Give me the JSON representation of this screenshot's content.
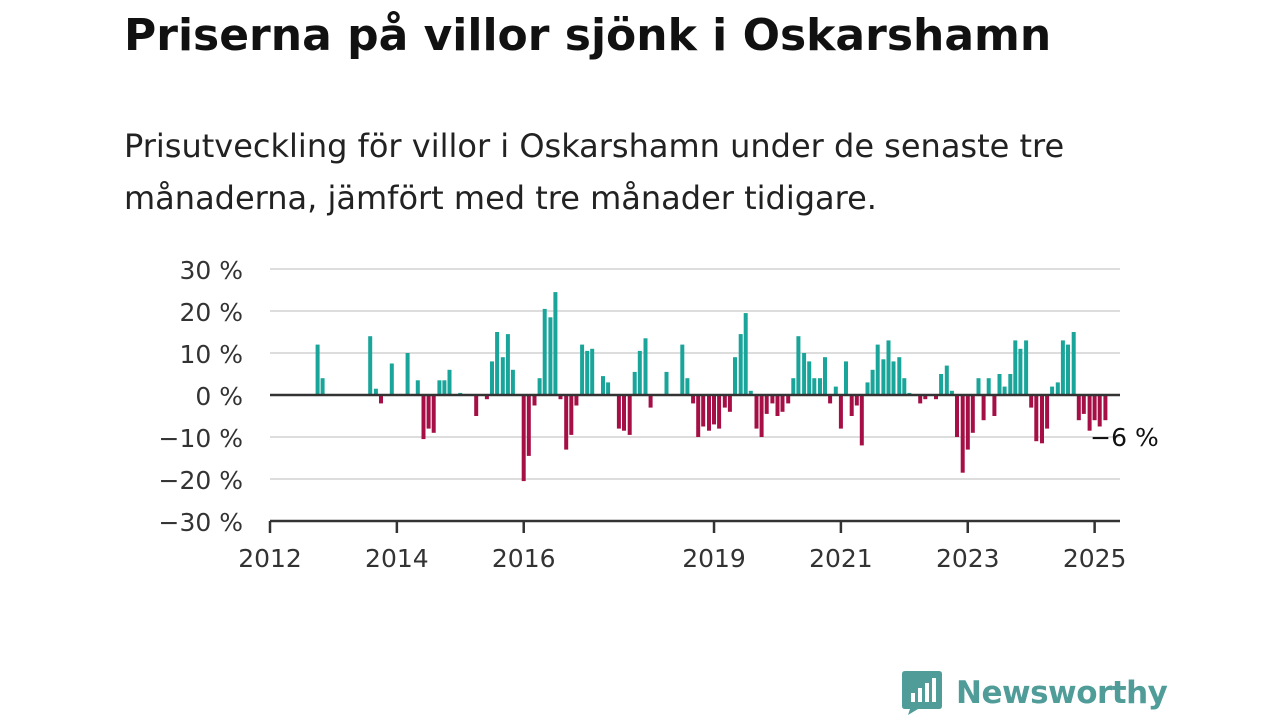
{
  "header": {
    "title": "Priserna på villor sjönk i Oskarshamn",
    "subtitle": "Prisutveckling för villor i Oskarshamn under de senaste tre månaderna, jämfört med tre månader tidigare."
  },
  "brand": {
    "name": "Newsworthy",
    "color": "#4f9c99",
    "icon": "newsworthy-logo-icon"
  },
  "colors": {
    "positive": "#1aa59a",
    "negative": "#a50f45",
    "gridline": "#dddddd",
    "zero_line": "#333333",
    "axis": "#333333"
  },
  "chart_data": {
    "type": "bar",
    "title": "",
    "xlabel": "",
    "ylabel": "",
    "ylim": [
      -30,
      30
    ],
    "xlim": [
      2012,
      2025.4
    ],
    "y_ticks": [
      {
        "value": 30,
        "label": "30 %"
      },
      {
        "value": 20,
        "label": "20 %"
      },
      {
        "value": 10,
        "label": "10 %"
      },
      {
        "value": 0,
        "label": "0 %"
      },
      {
        "value": -10,
        "label": "−10 %"
      },
      {
        "value": -20,
        "label": "−20 %"
      },
      {
        "value": -30,
        "label": "−30 %"
      }
    ],
    "x_ticks": [
      {
        "value": 2012,
        "label": "2012"
      },
      {
        "value": 2014,
        "label": "2014"
      },
      {
        "value": 2016,
        "label": "2016"
      },
      {
        "value": 2019,
        "label": "2019"
      },
      {
        "value": 2021,
        "label": "2021"
      },
      {
        "value": 2023,
        "label": "2023"
      },
      {
        "value": 2025,
        "label": "2025"
      }
    ],
    "grid": true,
    "legend": "none",
    "annotation": {
      "label": "−6 %",
      "x": 2025.15,
      "y": -6
    },
    "points": [
      [
        2012.75,
        12
      ],
      [
        2012.83,
        4
      ],
      [
        2013.58,
        14
      ],
      [
        2013.67,
        1.5
      ],
      [
        2013.75,
        -2
      ],
      [
        2013.92,
        7.5
      ],
      [
        2014.17,
        10
      ],
      [
        2014.33,
        3.5
      ],
      [
        2014.42,
        -10.5
      ],
      [
        2014.5,
        -8
      ],
      [
        2014.58,
        -9
      ],
      [
        2014.67,
        3.5
      ],
      [
        2014.75,
        3.5
      ],
      [
        2014.83,
        6
      ],
      [
        2015.0,
        0.5
      ],
      [
        2015.25,
        -5
      ],
      [
        2015.42,
        -1
      ],
      [
        2015.5,
        8
      ],
      [
        2015.58,
        15
      ],
      [
        2015.67,
        9
      ],
      [
        2015.75,
        14.5
      ],
      [
        2015.83,
        6
      ],
      [
        2016.0,
        -20.5
      ],
      [
        2016.08,
        -14.5
      ],
      [
        2016.17,
        -2.5
      ],
      [
        2016.25,
        4
      ],
      [
        2016.33,
        20.5
      ],
      [
        2016.42,
        18.5
      ],
      [
        2016.5,
        24.5
      ],
      [
        2016.58,
        -1
      ],
      [
        2016.67,
        -13
      ],
      [
        2016.75,
        -9.5
      ],
      [
        2016.83,
        -2.5
      ],
      [
        2016.92,
        12
      ],
      [
        2017.0,
        10.5
      ],
      [
        2017.08,
        11
      ],
      [
        2017.25,
        4.5
      ],
      [
        2017.33,
        3
      ],
      [
        2017.5,
        -8
      ],
      [
        2017.58,
        -8.5
      ],
      [
        2017.67,
        -9.5
      ],
      [
        2017.75,
        5.5
      ],
      [
        2017.83,
        10.5
      ],
      [
        2017.92,
        13.5
      ],
      [
        2018.0,
        -3
      ],
      [
        2018.25,
        5.5
      ],
      [
        2018.5,
        12
      ],
      [
        2018.58,
        4
      ],
      [
        2018.67,
        -2
      ],
      [
        2018.75,
        -10
      ],
      [
        2018.83,
        -7.5
      ],
      [
        2018.92,
        -8.5
      ],
      [
        2019.0,
        -7
      ],
      [
        2019.08,
        -8
      ],
      [
        2019.17,
        -3
      ],
      [
        2019.25,
        -4
      ],
      [
        2019.33,
        9
      ],
      [
        2019.42,
        14.5
      ],
      [
        2019.5,
        19.5
      ],
      [
        2019.58,
        1
      ],
      [
        2019.67,
        -8
      ],
      [
        2019.75,
        -10
      ],
      [
        2019.83,
        -4.5
      ],
      [
        2019.92,
        -2
      ],
      [
        2020.0,
        -5
      ],
      [
        2020.08,
        -4
      ],
      [
        2020.17,
        -2
      ],
      [
        2020.25,
        4
      ],
      [
        2020.33,
        14
      ],
      [
        2020.42,
        10
      ],
      [
        2020.5,
        8
      ],
      [
        2020.58,
        4
      ],
      [
        2020.67,
        4
      ],
      [
        2020.75,
        9
      ],
      [
        2020.83,
        -2
      ],
      [
        2020.92,
        2
      ],
      [
        2021.0,
        -8
      ],
      [
        2021.08,
        8
      ],
      [
        2021.17,
        -5
      ],
      [
        2021.25,
        -2.5
      ],
      [
        2021.33,
        -12
      ],
      [
        2021.42,
        3
      ],
      [
        2021.5,
        6
      ],
      [
        2021.58,
        12
      ],
      [
        2021.67,
        8.5
      ],
      [
        2021.75,
        13
      ],
      [
        2021.83,
        8
      ],
      [
        2021.92,
        9
      ],
      [
        2022.0,
        4
      ],
      [
        2022.08,
        0.5
      ],
      [
        2022.25,
        -2
      ],
      [
        2022.33,
        -1
      ],
      [
        2022.5,
        -1
      ],
      [
        2022.58,
        5
      ],
      [
        2022.67,
        7
      ],
      [
        2022.75,
        1
      ],
      [
        2022.83,
        -10
      ],
      [
        2022.92,
        -18.5
      ],
      [
        2023.0,
        -13
      ],
      [
        2023.08,
        -9
      ],
      [
        2023.17,
        4
      ],
      [
        2023.25,
        -6
      ],
      [
        2023.33,
        4
      ],
      [
        2023.42,
        -5
      ],
      [
        2023.5,
        5
      ],
      [
        2023.58,
        2
      ],
      [
        2023.67,
        5
      ],
      [
        2023.75,
        13
      ],
      [
        2023.83,
        11
      ],
      [
        2023.92,
        13
      ],
      [
        2024.0,
        -3
      ],
      [
        2024.08,
        -11
      ],
      [
        2024.17,
        -11.5
      ],
      [
        2024.25,
        -8
      ],
      [
        2024.33,
        2
      ],
      [
        2024.42,
        3
      ],
      [
        2024.5,
        13
      ],
      [
        2024.58,
        12
      ],
      [
        2024.67,
        15
      ],
      [
        2024.75,
        -6
      ],
      [
        2024.83,
        -4.5
      ],
      [
        2024.92,
        -8.5
      ],
      [
        2025.0,
        -6
      ],
      [
        2025.08,
        -7.5
      ],
      [
        2025.17,
        -6
      ]
    ]
  }
}
